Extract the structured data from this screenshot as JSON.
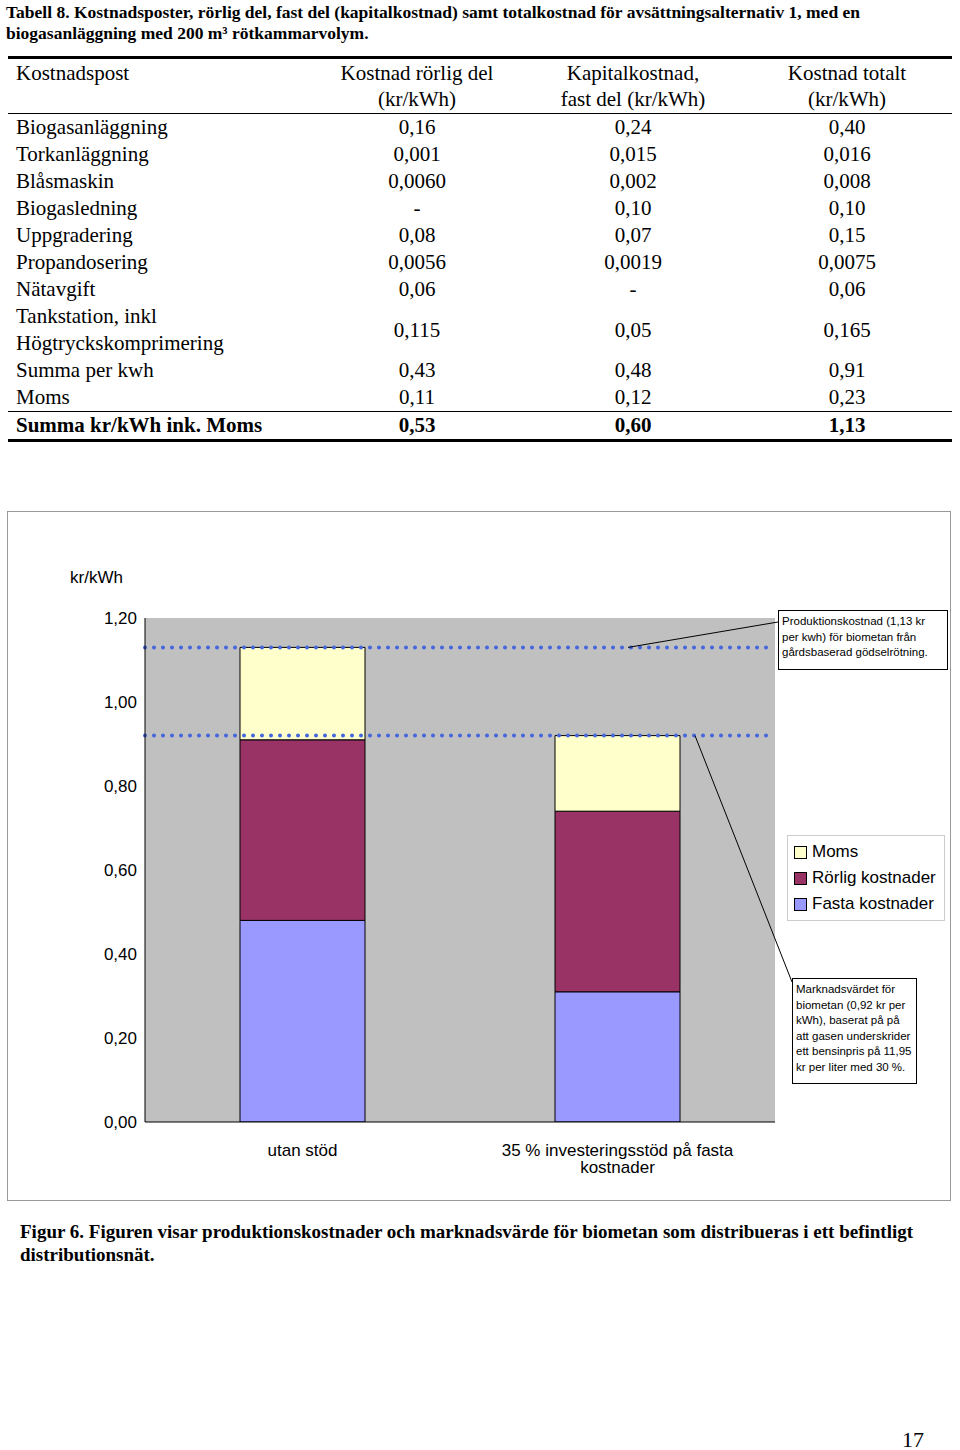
{
  "table_caption": "Tabell 8. Kostnadsposter, rörlig del, fast del (kapitalkostnad) samt totalkostnad för avsättningsalternativ 1, med en biogasanläggning med 200 m³ rötkammarvolym.",
  "table": {
    "header": [
      "Kostnadspost",
      "Kostnad rörlig del\n(kr/kWh)",
      "Kapitalkostnad,\nfast del (kr/kWh)",
      "Kostnad totalt\n(kr/kWh)"
    ],
    "rows": [
      [
        "Biogasanläggning",
        "0,16",
        "0,24",
        "0,40"
      ],
      [
        "Torkanläggning",
        "0,001",
        "0,015",
        "0,016"
      ],
      [
        "Blåsmaskin",
        "0,0060",
        "0,002",
        "0,008"
      ],
      [
        "Biogasledning",
        "-",
        "0,10",
        "0,10"
      ],
      [
        "Uppgradering",
        "0,08",
        "0,07",
        "0,15"
      ],
      [
        "Propandosering",
        "0,0056",
        "0,0019",
        "0,0075"
      ],
      [
        "Nätavgift",
        "0,06",
        "-",
        "0,06"
      ],
      [
        "Tankstation, inkl\nHögtryckskomprimering",
        "0,115",
        "0,05",
        "0,165"
      ],
      [
        "Summa per kwh",
        "0,43",
        "0,48",
        "0,91"
      ],
      [
        "Moms",
        "0,11",
        "0,12",
        "0,23"
      ],
      [
        "Summa kr/kWh ink. Moms",
        "0,53",
        "0,60",
        "1,13"
      ]
    ]
  },
  "chart_data": {
    "type": "bar",
    "stacked": true,
    "grid": false,
    "y_label": "kr/kWh",
    "categories": [
      "utan stöd",
      "35 % investeringsstöd på fasta kostnader"
    ],
    "series": [
      {
        "name": "Fasta kostnader",
        "color": "#9999ff",
        "values": [
          0.48,
          0.31
        ]
      },
      {
        "name": "Rörlig kostnader",
        "color": "#993366",
        "values": [
          0.43,
          0.43
        ]
      },
      {
        "name": "Moms",
        "color": "#ffffcc",
        "values": [
          0.22,
          0.18
        ]
      }
    ],
    "ylim": [
      0,
      1.2
    ],
    "yticks": [
      {
        "value": 0,
        "label": "0,00"
      },
      {
        "value": 0.2,
        "label": "0,20"
      },
      {
        "value": 0.4,
        "label": "0,40"
      },
      {
        "value": 0.6,
        "label": "0,60"
      },
      {
        "value": 0.8,
        "label": "0,80"
      },
      {
        "value": 1.0,
        "label": "1,00"
      },
      {
        "value": 1.2,
        "label": "1,20"
      }
    ],
    "annotations": [
      {
        "value": 1.13,
        "text": "Produktionskostnad (1,13 kr per kwh) för biometan från gårdsbaserad gödselrötning."
      },
      {
        "value": 0.92,
        "text": "Marknadsvärdet för biometan (0,92 kr per kWh), baserat på på att gasen underskrider ett bensinpris på 11,95 kr per liter med 30 %."
      }
    ]
  },
  "figure_caption": "Figur 6. Figuren visar produktionskostnader och marknadsvärde för biometan som distribueras i ett befintligt distributionsnät.",
  "page_number": "17"
}
